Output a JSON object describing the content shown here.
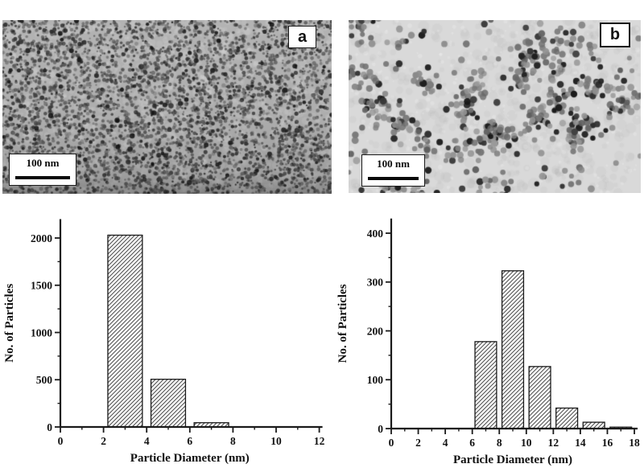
{
  "figure": {
    "panels": [
      {
        "label": "a",
        "scale_bar_text": "100 nm"
      },
      {
        "label": "b",
        "scale_bar_text": "100 nm"
      }
    ]
  },
  "chart_data": [
    {
      "type": "bar",
      "title": "",
      "xlabel": "Particle Diameter (nm)",
      "ylabel": "No. of Particles",
      "xlim": [
        0,
        12
      ],
      "ylim": [
        0,
        2200
      ],
      "x_major_ticks": [
        0,
        2,
        4,
        6,
        8,
        10,
        12
      ],
      "x_minor_step": 1,
      "y_major_ticks": [
        0,
        500,
        1000,
        1500,
        2000
      ],
      "y_minor_step": 250,
      "bin_width": 1.6,
      "bars": [
        {
          "center": 3,
          "value": 2030
        },
        {
          "center": 5,
          "value": 505
        },
        {
          "center": 7,
          "value": 45
        }
      ],
      "grid": false,
      "legend": null
    },
    {
      "type": "bar",
      "title": "",
      "xlabel": "Particle Diameter (nm)",
      "ylabel": "No. of Particles",
      "xlim": [
        0,
        18
      ],
      "ylim": [
        0,
        430
      ],
      "x_major_ticks": [
        0,
        2,
        4,
        6,
        8,
        10,
        12,
        14,
        16,
        18
      ],
      "x_minor_step": 1,
      "y_major_ticks": [
        0,
        100,
        200,
        300,
        400
      ],
      "y_minor_step": 50,
      "bin_width": 1.6,
      "bars": [
        {
          "center": 7,
          "value": 178
        },
        {
          "center": 9,
          "value": 323
        },
        {
          "center": 11,
          "value": 127
        },
        {
          "center": 13,
          "value": 42
        },
        {
          "center": 15,
          "value": 13
        },
        {
          "center": 17,
          "value": 3
        }
      ],
      "grid": false,
      "legend": null
    }
  ],
  "colors": {
    "chart_ink": "#1a1a1a",
    "hatch": "#4a4a4a",
    "micrograph_a_bg": "#b3b3b3",
    "micrograph_b_bg": "#d9d9d9",
    "page_bg": "#ffffff"
  }
}
